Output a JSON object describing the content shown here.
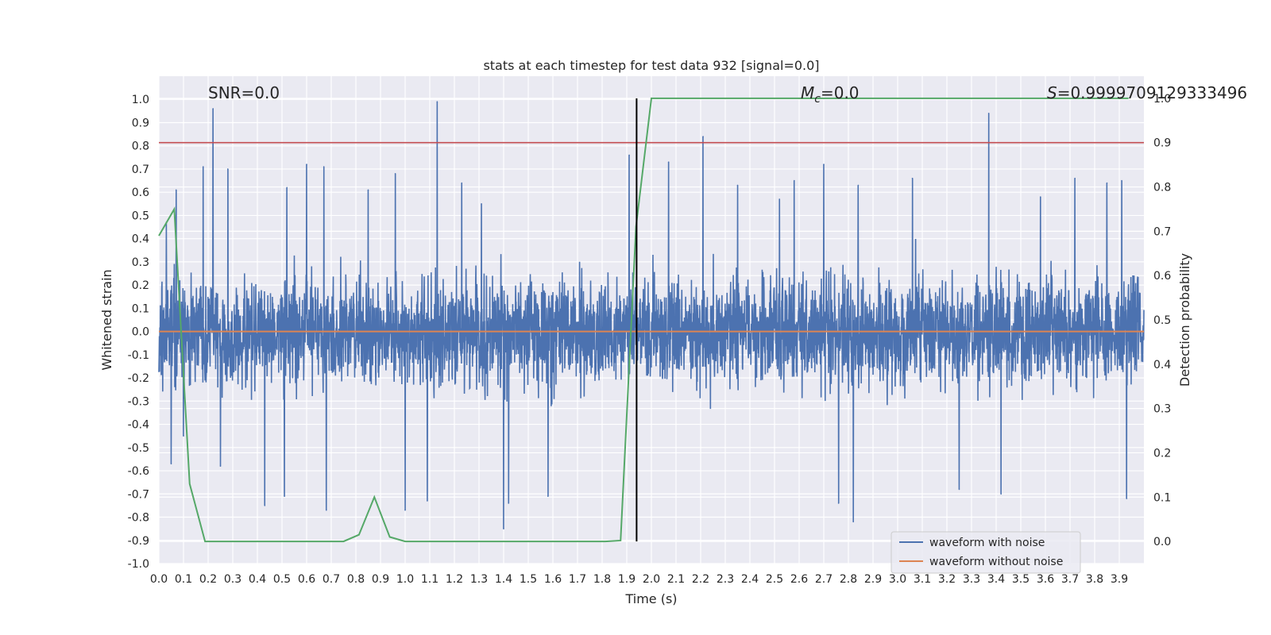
{
  "chart_data": {
    "type": "line",
    "title": "stats at each timestep for test data 932 [signal=0.0]",
    "xlabel": "Time (s)",
    "ylabel": "Whitened strain",
    "y2label": "Detection probability",
    "xlim": [
      0.0,
      4.0
    ],
    "ylim": [
      -1.0,
      1.1
    ],
    "y2lim": [
      -0.05,
      1.05
    ],
    "x_ticks": [
      0.0,
      0.1,
      0.2,
      0.3,
      0.4,
      0.5,
      0.6,
      0.7,
      0.8,
      0.9,
      1.0,
      1.1,
      1.2,
      1.3,
      1.4,
      1.5,
      1.6,
      1.7,
      1.8,
      1.9,
      2.0,
      2.1,
      2.2,
      2.3,
      2.4,
      2.5,
      2.6,
      2.7,
      2.8,
      2.9,
      3.0,
      3.1,
      3.2,
      3.3,
      3.4,
      3.5,
      3.6,
      3.7,
      3.8,
      3.9
    ],
    "y_ticks": [
      -1.0,
      -0.9,
      -0.8,
      -0.7,
      -0.6,
      -0.5,
      -0.4,
      -0.3,
      -0.2,
      -0.1,
      0.0,
      0.1,
      0.2,
      0.3,
      0.4,
      0.5,
      0.6,
      0.7,
      0.8,
      0.9,
      1.0
    ],
    "y2_ticks": [
      0.0,
      0.1,
      0.2,
      0.3,
      0.4,
      0.5,
      0.6,
      0.7,
      0.8,
      0.9,
      1.0
    ],
    "grid": true,
    "legend_position": "lower-right",
    "annotations": {
      "snr": "SNR=0.0",
      "mc_symbol": "M",
      "mc_sub": "c",
      "mc_value": "=0.0",
      "s_symbol": "S",
      "s_value": "=0.9999709129333496"
    },
    "threshold": {
      "axis": "y2",
      "value": 0.9,
      "color": "#c44e52"
    },
    "event_marker": {
      "x": 1.94,
      "ymin": 0.0,
      "ymax": 1.0,
      "color": "#000000"
    },
    "series": [
      {
        "name": "waveform with noise",
        "color": "#4c72b0",
        "axis": "y",
        "description": "noisy whitened strain; amplitude mostly within +/-0.4 with spikes",
        "spikes": [
          {
            "x": 0.03,
            "y": 0.47
          },
          {
            "x": 0.05,
            "y": -0.57
          },
          {
            "x": 0.07,
            "y": 0.61
          },
          {
            "x": 0.1,
            "y": -0.45
          },
          {
            "x": 0.18,
            "y": 0.71
          },
          {
            "x": 0.22,
            "y": 0.96
          },
          {
            "x": 0.25,
            "y": -0.58
          },
          {
            "x": 0.28,
            "y": 0.7
          },
          {
            "x": 0.43,
            "y": -0.75
          },
          {
            "x": 0.51,
            "y": -0.71
          },
          {
            "x": 0.52,
            "y": 0.62
          },
          {
            "x": 0.6,
            "y": 0.72
          },
          {
            "x": 0.67,
            "y": 0.71
          },
          {
            "x": 0.68,
            "y": -0.77
          },
          {
            "x": 0.85,
            "y": 0.61
          },
          {
            "x": 0.96,
            "y": 0.68
          },
          {
            "x": 1.0,
            "y": -0.77
          },
          {
            "x": 1.09,
            "y": -0.73
          },
          {
            "x": 1.13,
            "y": 0.99
          },
          {
            "x": 1.23,
            "y": 0.64
          },
          {
            "x": 1.31,
            "y": 0.55
          },
          {
            "x": 1.4,
            "y": -0.85
          },
          {
            "x": 1.42,
            "y": -0.74
          },
          {
            "x": 1.58,
            "y": -0.71
          },
          {
            "x": 1.91,
            "y": 0.76
          },
          {
            "x": 2.07,
            "y": 0.73
          },
          {
            "x": 2.21,
            "y": 0.84
          },
          {
            "x": 2.35,
            "y": 0.63
          },
          {
            "x": 2.52,
            "y": 0.57
          },
          {
            "x": 2.58,
            "y": 0.65
          },
          {
            "x": 2.7,
            "y": 0.72
          },
          {
            "x": 2.76,
            "y": -0.74
          },
          {
            "x": 2.82,
            "y": -0.82
          },
          {
            "x": 2.84,
            "y": 0.63
          },
          {
            "x": 3.06,
            "y": 0.66
          },
          {
            "x": 3.25,
            "y": -0.68
          },
          {
            "x": 3.37,
            "y": 0.94
          },
          {
            "x": 3.42,
            "y": -0.7
          },
          {
            "x": 3.58,
            "y": 0.58
          },
          {
            "x": 3.72,
            "y": 0.66
          },
          {
            "x": 3.85,
            "y": 0.64
          },
          {
            "x": 3.91,
            "y": 0.65
          },
          {
            "x": 3.93,
            "y": -0.72
          }
        ]
      },
      {
        "name": "waveform without noise",
        "color": "#dd8452",
        "axis": "y",
        "x": [
          0.0,
          4.0
        ],
        "values": [
          0.0,
          0.0
        ]
      },
      {
        "name": "",
        "color": "#55a868",
        "axis": "y2",
        "x": [
          0.0,
          0.0625,
          0.125,
          0.1875,
          0.25,
          0.3125,
          0.375,
          0.4375,
          0.5,
          0.5625,
          0.625,
          0.6875,
          0.75,
          0.8125,
          0.875,
          0.9375,
          1.0,
          1.0625,
          1.125,
          1.1875,
          1.25,
          1.3125,
          1.375,
          1.4375,
          1.5,
          1.5625,
          1.625,
          1.6875,
          1.75,
          1.8125,
          1.875,
          1.9375,
          2.0,
          2.0625,
          2.125,
          2.1875,
          2.25,
          2.3125,
          2.375,
          2.4375,
          2.5,
          2.5625,
          2.625,
          2.6875,
          2.75,
          2.8125,
          2.875,
          2.9375,
          3.0,
          3.0625,
          3.125,
          3.1875,
          3.25,
          3.3125,
          3.375,
          3.4375,
          3.5,
          3.5625,
          3.625,
          3.6875,
          3.75,
          3.8125,
          3.875,
          3.9375
        ],
        "values": [
          0.69,
          0.75,
          0.13,
          0.0,
          0.0,
          0.0,
          0.0,
          0.0,
          0.0,
          0.0,
          0.0,
          0.0,
          0.0,
          0.015,
          0.1,
          0.01,
          0.0,
          0.0,
          0.0,
          0.0,
          0.0,
          0.0,
          0.0,
          0.0,
          0.0,
          0.0,
          0.0,
          0.0,
          0.0,
          0.0,
          0.002,
          0.71,
          1.0,
          1.0,
          1.0,
          1.0,
          1.0,
          1.0,
          1.0,
          1.0,
          1.0,
          1.0,
          1.0,
          1.0,
          1.0,
          1.0,
          1.0,
          1.0,
          1.0,
          1.0,
          1.0,
          1.0,
          1.0,
          1.0,
          1.0,
          1.0,
          1.0,
          1.0,
          1.0,
          1.0,
          1.0,
          1.0,
          1.0,
          1.0
        ]
      }
    ]
  }
}
